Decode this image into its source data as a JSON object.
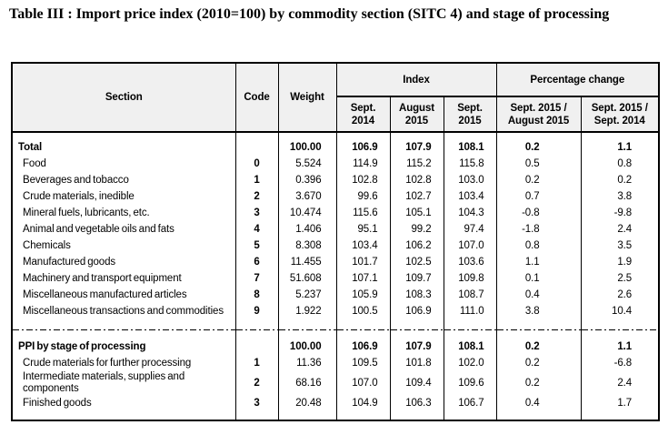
{
  "title": "Table III : Import price index (2010=100) by commodity section (SITC 4) and stage of processing",
  "table": {
    "header": {
      "section": "Section",
      "code": "Code",
      "weight": "Weight",
      "index_group": "Index",
      "pct_group": "Percentage change",
      "index_cols": [
        "Sept.\n2014",
        "August\n2015",
        "Sept.\n2015"
      ],
      "pct_cols": [
        "Sept. 2015 /\nAugust 2015",
        "Sept. 2015 /\nSept. 2014"
      ]
    },
    "sections": [
      {
        "rows": [
          {
            "section": "Total",
            "bold": true,
            "code": "",
            "weight": "100.00",
            "index": [
              "106.9",
              "107.9",
              "108.1"
            ],
            "pct": [
              "0.2",
              "1.1"
            ]
          },
          {
            "section": "Food",
            "code": "0",
            "weight": "5.524",
            "index": [
              "114.9",
              "115.2",
              "115.8"
            ],
            "pct": [
              "0.5",
              "0.8"
            ]
          },
          {
            "section": "Beverages and tobacco",
            "code": "1",
            "weight": "0.396",
            "index": [
              "102.8",
              "102.8",
              "103.0"
            ],
            "pct": [
              "0.2",
              "0.2"
            ]
          },
          {
            "section": "Crude materials, inedible",
            "code": "2",
            "weight": "3.670",
            "index": [
              "99.6",
              "102.7",
              "103.4"
            ],
            "pct": [
              "0.7",
              "3.8"
            ]
          },
          {
            "section": "Mineral fuels, lubricants, etc.",
            "code": "3",
            "weight": "10.474",
            "index": [
              "115.6",
              "105.1",
              "104.3"
            ],
            "pct": [
              "-0.8",
              "-9.8"
            ]
          },
          {
            "section": "Animal and vegetable oils and fats",
            "code": "4",
            "weight": "1.406",
            "index": [
              "95.1",
              "99.2",
              "97.4"
            ],
            "pct": [
              "-1.8",
              "2.4"
            ]
          },
          {
            "section": "Chemicals",
            "code": "5",
            "weight": "8.308",
            "index": [
              "103.4",
              "106.2",
              "107.0"
            ],
            "pct": [
              "0.8",
              "3.5"
            ]
          },
          {
            "section": "Manufactured goods",
            "code": "6",
            "weight": "11.455",
            "index": [
              "101.7",
              "102.5",
              "103.6"
            ],
            "pct": [
              "1.1",
              "1.9"
            ]
          },
          {
            "section": "Machinery and transport equipment",
            "code": "7",
            "weight": "51.608",
            "index": [
              "107.1",
              "109.7",
              "109.8"
            ],
            "pct": [
              "0.1",
              "2.5"
            ]
          },
          {
            "section": "Miscellaneous manufactured articles",
            "code": "8",
            "weight": "5.237",
            "index": [
              "105.9",
              "108.3",
              "108.7"
            ],
            "pct": [
              "0.4",
              "2.6"
            ]
          },
          {
            "section": "Miscellaneous transactions and commodities",
            "code": "9",
            "weight": "1.922",
            "index": [
              "100.5",
              "106.9",
              "111.0"
            ],
            "pct": [
              "3.8",
              "10.4"
            ]
          }
        ]
      },
      {
        "rows": [
          {
            "section": "PPI by stage of processing",
            "bold": true,
            "code": "",
            "weight": "100.00",
            "index": [
              "106.9",
              "107.9",
              "108.1"
            ],
            "pct": [
              "0.2",
              "1.1"
            ]
          },
          {
            "section": "Crude materials for further processing",
            "code": "1",
            "weight": "11.36",
            "index": [
              "109.5",
              "101.8",
              "102.0"
            ],
            "pct": [
              "0.2",
              "-6.8"
            ]
          },
          {
            "section": "Intermediate materials, supplies and components",
            "code": "2",
            "weight": "68.16",
            "index": [
              "107.0",
              "109.4",
              "109.6"
            ],
            "pct": [
              "0.2",
              "2.4"
            ]
          },
          {
            "section": "Finished goods",
            "code": "3",
            "weight": "20.48",
            "index": [
              "104.9",
              "106.3",
              "106.7"
            ],
            "pct": [
              "0.4",
              "1.7"
            ]
          }
        ]
      }
    ]
  },
  "colors": {
    "header_bg": "#f0f0f0",
    "border": "#000000",
    "text": "#000000",
    "page_bg": "#ffffff"
  }
}
